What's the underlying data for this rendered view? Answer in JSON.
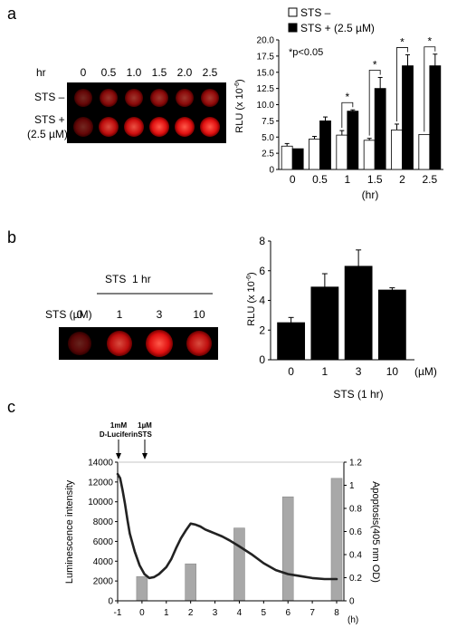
{
  "panel_a": {
    "label": "a",
    "hr_label": "hr",
    "hr_ticks": [
      "0",
      "0.5",
      "1.0",
      "1.5",
      "2.0",
      "2.5"
    ],
    "row_labels": [
      "STS –",
      "STS +",
      "(2.5 µM)"
    ],
    "well_color": "#ff1a1a",
    "chart": {
      "legend": [
        "STS –",
        "STS + (2.5 µM)"
      ],
      "note": "*p<0.05",
      "star": "*"
    }
  },
  "panel_b": {
    "label": "b",
    "treatment_label": "STS  1 hr",
    "dose_label": "STS (µM)",
    "doses": [
      "0",
      "1",
      "3",
      "10"
    ],
    "unit_label": "(µM)"
  },
  "panel_c": {
    "label": "c",
    "arrow1_line1": "1mM",
    "arrow1_line2": "D-Luciferin",
    "arrow2_line1": "1µM",
    "arrow2_line2": "STS",
    "ylabel_right": "Apoptosis(405 nm OD)"
  },
  "chart_data": [
    {
      "type": "bar",
      "categories": [
        "0",
        "0.5",
        "1",
        "1.5",
        "2",
        "2.5"
      ],
      "series": [
        {
          "name": "STS –",
          "values": [
            3.6,
            4.7,
            5.3,
            4.5,
            6.1,
            5.4
          ],
          "errors": [
            0.4,
            0.4,
            0.7,
            0.3,
            0.9,
            0.0
          ],
          "color": "#ffffff"
        },
        {
          "name": "STS + (2.5 µM)",
          "values": [
            3.2,
            7.5,
            9.0,
            12.5,
            16.0,
            16.0
          ],
          "errors": [
            0.0,
            0.6,
            0.2,
            1.7,
            1.7,
            1.8
          ],
          "color": "#000000"
        }
      ],
      "significant": [
        false,
        false,
        true,
        true,
        true,
        true
      ],
      "xlabel": "(hr)",
      "ylabel": "RLU (x 10-6)",
      "ylim": [
        0,
        20
      ],
      "yticks": [
        "0",
        "2.5",
        "5.0",
        "7.5",
        "10.0",
        "12.5",
        "15.0",
        "17.5",
        "20.0"
      ]
    },
    {
      "type": "bar",
      "categories": [
        "0",
        "1",
        "3",
        "10"
      ],
      "values": [
        2.5,
        4.9,
        6.3,
        4.7
      ],
      "errors": [
        0.35,
        0.9,
        1.1,
        0.15
      ],
      "xlabel": "STS (1 hr)",
      "ylabel": "RLU (x 10-6)",
      "ylim": [
        0,
        8
      ],
      "yticks": [
        "0",
        "2",
        "4",
        "6",
        "8"
      ]
    },
    {
      "type": "line",
      "x": [
        -1.0,
        -0.9,
        -0.8,
        -0.7,
        -0.6,
        -0.5,
        -0.3,
        -0.1,
        0.1,
        0.3,
        0.5,
        0.7,
        1.0,
        1.2,
        1.4,
        1.6,
        1.8,
        2.0,
        2.2,
        2.4,
        2.6,
        2.8,
        3.0,
        3.3,
        3.6,
        4.0,
        4.5,
        5.0,
        5.5,
        6.0,
        6.5,
        7.0,
        7.5,
        7.8,
        8.0
      ],
      "y": [
        12800,
        12400,
        11200,
        9800,
        8200,
        6800,
        5000,
        3600,
        2700,
        2300,
        2400,
        2700,
        3400,
        4200,
        5300,
        6300,
        7100,
        7800,
        7700,
        7500,
        7200,
        7000,
        6800,
        6500,
        6100,
        5500,
        4700,
        3800,
        3100,
        2700,
        2500,
        2300,
        2200,
        2200,
        2200
      ],
      "bars": {
        "x": [
          0,
          2,
          4,
          6,
          8
        ],
        "values": [
          0.21,
          0.32,
          0.63,
          0.9,
          1.06
        ]
      },
      "xlabel": "(h)",
      "xticks": [
        "-1",
        "0",
        "1",
        "2",
        "3",
        "4",
        "5",
        "6",
        "7",
        "8"
      ],
      "ylabel": "Luminescence intensity",
      "ylim": [
        0,
        14000
      ],
      "yticks": [
        "0",
        "2000",
        "4000",
        "6000",
        "8000",
        "10000",
        "12000",
        "14000"
      ],
      "y2label": "Apoptosis(405 nm OD)",
      "y2lim": [
        0,
        1.2
      ],
      "y2ticks": [
        "0",
        "0.2",
        "0.4",
        "0.6",
        "0.8",
        "1",
        "1.2"
      ]
    }
  ]
}
